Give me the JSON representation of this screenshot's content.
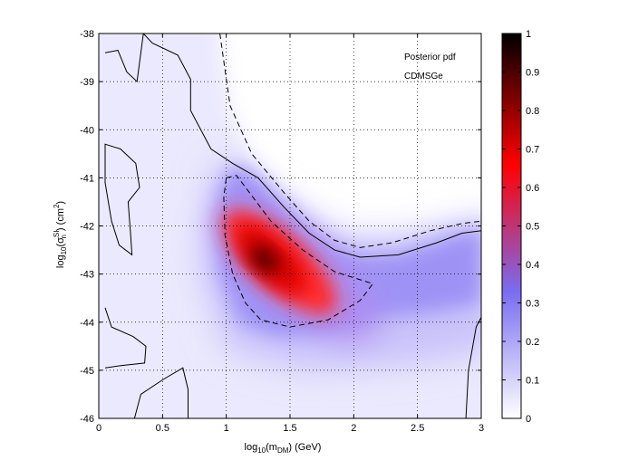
{
  "chart_data": {
    "type": "heatmap",
    "title": "",
    "xlabel": {
      "prefix": "log",
      "sub1": "10",
      "mid": "(m",
      "sub2": "DM",
      "suffix": ") (GeV)"
    },
    "ylabel": {
      "prefix": "log",
      "sub1": "10",
      "mid": "(σ",
      "sup": "SI",
      "sub2": "n",
      "suffix": ") (cm",
      "sup2": "2",
      "end": ")"
    },
    "xlim": [
      0,
      3
    ],
    "ylim": [
      -46,
      -38
    ],
    "grid": true,
    "x_ticks": [
      "0",
      "0.5",
      "1",
      "1.5",
      "2",
      "2.5",
      "3"
    ],
    "x_tick_values": [
      0,
      0.5,
      1,
      1.5,
      2,
      2.5,
      3
    ],
    "y_ticks": [
      "-38",
      "-39",
      "-40",
      "-41",
      "-42",
      "-43",
      "-44",
      "-45",
      "-46"
    ],
    "y_tick_values": [
      -38,
      -39,
      -40,
      -41,
      -42,
      -43,
      -44,
      -45,
      -46
    ],
    "legend": [
      "Posterior pdf",
      "CDMSGe"
    ],
    "colorbar": {
      "range": [
        0,
        1
      ],
      "ticks": [
        "0",
        "0.1",
        "0.2",
        "0.3",
        "0.4",
        "0.5",
        "0.6",
        "0.7",
        "0.8",
        "0.9",
        "1"
      ],
      "tick_values": [
        0,
        0.1,
        0.2,
        0.3,
        0.4,
        0.5,
        0.6,
        0.7,
        0.8,
        0.9,
        1
      ],
      "colors": [
        "#ffffff",
        "#7a6cf0",
        "#ff0000",
        "#000000"
      ]
    },
    "peak": {
      "x": 1.3,
      "y": -42.7,
      "value": 1.0
    },
    "contours": {
      "dashed_outer": [
        [
          0.95,
          -38
        ],
        [
          1.03,
          -39.5
        ],
        [
          1.2,
          -40.5
        ],
        [
          1.45,
          -41.3
        ],
        [
          1.65,
          -41.9
        ],
        [
          1.85,
          -42.3
        ],
        [
          2.05,
          -42.45
        ],
        [
          2.3,
          -42.35
        ],
        [
          2.6,
          -42.1
        ],
        [
          2.85,
          -41.95
        ],
        [
          3.0,
          -41.9
        ]
      ],
      "solid_outer": [
        [
          0.35,
          -38.0
        ],
        [
          0.42,
          -38.2
        ],
        [
          0.62,
          -38.45
        ],
        [
          0.72,
          -38.95
        ],
        [
          0.72,
          -39.6
        ],
        [
          0.88,
          -40.4
        ],
        [
          1.05,
          -40.7
        ],
        [
          1.25,
          -41.0
        ],
        [
          1.45,
          -41.6
        ],
        [
          1.65,
          -42.15
        ],
        [
          1.85,
          -42.5
        ],
        [
          2.05,
          -42.65
        ],
        [
          2.35,
          -42.6
        ],
        [
          2.65,
          -42.35
        ],
        [
          2.85,
          -42.15
        ],
        [
          3.0,
          -42.1
        ]
      ],
      "dashed_inner": [
        [
          1.0,
          -41.0
        ],
        [
          1.08,
          -40.95
        ],
        [
          1.18,
          -41.3
        ],
        [
          1.35,
          -41.9
        ],
        [
          1.6,
          -42.5
        ],
        [
          1.85,
          -42.95
        ],
        [
          2.15,
          -43.2
        ],
        [
          2.05,
          -43.55
        ],
        [
          1.8,
          -43.95
        ],
        [
          1.5,
          -44.1
        ],
        [
          1.27,
          -43.95
        ],
        [
          1.15,
          -43.6
        ],
        [
          1.05,
          -43.0
        ],
        [
          0.99,
          -42.2
        ],
        [
          0.98,
          -41.4
        ],
        [
          1.0,
          -41.0
        ]
      ],
      "solid_left_top": [
        [
          0.05,
          -38.4
        ],
        [
          0.15,
          -38.35
        ],
        [
          0.22,
          -38.8
        ],
        [
          0.3,
          -39.0
        ],
        [
          0.35,
          -38.0
        ]
      ],
      "solid_left_mid": [
        [
          0.05,
          -40.3
        ],
        [
          0.17,
          -40.4
        ],
        [
          0.29,
          -40.7
        ],
        [
          0.32,
          -41.2
        ],
        [
          0.23,
          -41.5
        ],
        [
          0.25,
          -42.2
        ],
        [
          0.26,
          -42.6
        ],
        [
          0.16,
          -42.4
        ],
        [
          0.1,
          -41.9
        ],
        [
          0.05,
          -41.1
        ]
      ],
      "solid_left_low": [
        [
          0.05,
          -43.7
        ],
        [
          0.1,
          -44.1
        ],
        [
          0.27,
          -44.3
        ],
        [
          0.37,
          -44.5
        ],
        [
          0.36,
          -44.85
        ],
        [
          0.18,
          -44.9
        ],
        [
          0.05,
          -44.95
        ]
      ],
      "solid_bottom": [
        [
          0.28,
          -46.0
        ],
        [
          0.33,
          -45.5
        ],
        [
          0.5,
          -45.2
        ],
        [
          0.66,
          -44.95
        ],
        [
          0.7,
          -45.4
        ],
        [
          0.7,
          -46.0
        ]
      ],
      "solid_right_bottom": [
        [
          2.88,
          -46.0
        ],
        [
          2.9,
          -45.0
        ],
        [
          2.96,
          -44.1
        ],
        [
          3.0,
          -43.9
        ]
      ]
    }
  }
}
